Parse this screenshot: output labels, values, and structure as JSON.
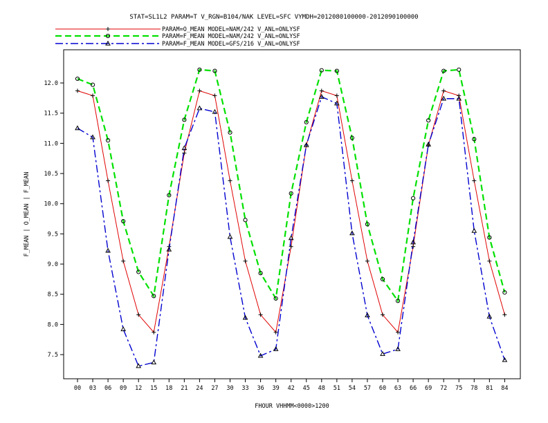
{
  "chart_data": {
    "type": "line",
    "title": "STAT=SL1L2 PARAM=T V_RGN=B104/NAK LEVEL=SFC VYMDH=2012080100000-2012090100000",
    "xlabel": "FHOUR VHHMM<0000>1200",
    "ylabel": "F_MEAN | O_MEAN | F_MEAN",
    "categories": [
      "00",
      "03",
      "06",
      "09",
      "12",
      "15",
      "18",
      "21",
      "24",
      "27",
      "30",
      "33",
      "36",
      "39",
      "42",
      "45",
      "48",
      "51",
      "54",
      "57",
      "60",
      "63",
      "66",
      "69",
      "72",
      "75",
      "78",
      "81",
      "84"
    ],
    "yticks": [
      "7.5",
      "8.0",
      "8.5",
      "9.0",
      "9.5",
      "10.0",
      "10.5",
      "11.0",
      "11.5",
      "12.0"
    ],
    "ylim": [
      7.1,
      12.55
    ],
    "grid": false,
    "legend_position": "top-left",
    "series": [
      {
        "name": "PARAM=O_MEAN MODEL=NAM/242 V_ANL=ONLYSF",
        "color": "#e00000",
        "dash": "solid",
        "marker": "plus",
        "values": [
          11.87,
          11.79,
          10.38,
          9.05,
          8.16,
          7.87,
          9.29,
          10.84,
          11.87,
          11.79,
          10.38,
          9.05,
          8.16,
          7.87,
          9.29,
          10.97,
          11.87,
          11.79,
          10.38,
          9.05,
          8.16,
          7.87,
          9.29,
          10.97,
          11.87,
          11.79,
          10.38,
          9.05,
          8.16
        ]
      },
      {
        "name": "PARAM=F_MEAN MODEL=NAM/242 V_ANL=ONLYSF",
        "color": "#00e000",
        "dash": "long",
        "marker": "circle",
        "values": [
          12.07,
          11.97,
          11.05,
          9.71,
          8.87,
          8.47,
          10.14,
          11.39,
          12.22,
          12.2,
          11.18,
          9.73,
          8.85,
          8.43,
          10.17,
          11.35,
          12.21,
          12.2,
          11.09,
          9.66,
          8.75,
          8.39,
          10.09,
          11.38,
          12.2,
          12.22,
          11.07,
          9.44,
          8.53
        ]
      },
      {
        "name": "PARAM=F_MEAN MODEL=GFS/216 V_ANL=ONLYSF",
        "color": "#0000d0",
        "dash": "dashdot",
        "marker": "triangle",
        "values": [
          11.25,
          11.1,
          9.22,
          7.92,
          7.31,
          7.37,
          9.24,
          10.92,
          11.58,
          11.52,
          9.45,
          8.11,
          7.48,
          7.59,
          9.43,
          10.97,
          11.77,
          11.66,
          9.51,
          8.15,
          7.51,
          7.59,
          9.36,
          10.98,
          11.74,
          11.74,
          9.55,
          8.13,
          7.41
        ]
      }
    ]
  }
}
